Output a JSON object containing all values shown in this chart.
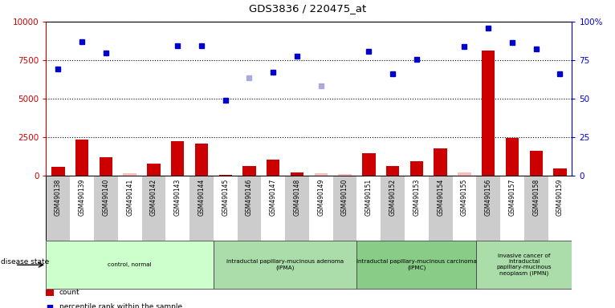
{
  "title": "GDS3836 / 220475_at",
  "samples": [
    "GSM490138",
    "GSM490139",
    "GSM490140",
    "GSM490141",
    "GSM490142",
    "GSM490143",
    "GSM490144",
    "GSM490145",
    "GSM490146",
    "GSM490147",
    "GSM490148",
    "GSM490149",
    "GSM490150",
    "GSM490151",
    "GSM490152",
    "GSM490153",
    "GSM490154",
    "GSM490155",
    "GSM490156",
    "GSM490157",
    "GSM490158",
    "GSM490159"
  ],
  "count": [
    550,
    2350,
    1200,
    150,
    750,
    2250,
    2100,
    50,
    600,
    1050,
    200,
    150,
    100,
    1450,
    600,
    950,
    1750,
    200,
    8100,
    2450,
    1600,
    450
  ],
  "count_is_absent": [
    false,
    false,
    false,
    true,
    false,
    false,
    false,
    false,
    false,
    false,
    false,
    true,
    true,
    false,
    false,
    false,
    false,
    true,
    false,
    false,
    false,
    false
  ],
  "percentile_rank": [
    6900,
    8700,
    7950,
    null,
    null,
    8450,
    8450,
    4900,
    null,
    6700,
    7750,
    null,
    null,
    8050,
    6600,
    7550,
    null,
    8400,
    9600,
    8650,
    8200,
    6600
  ],
  "rank_absent": [
    null,
    null,
    null,
    null,
    null,
    null,
    null,
    null,
    6350,
    null,
    null,
    5850,
    null,
    null,
    null,
    null,
    null,
    null,
    null,
    null,
    null,
    null
  ],
  "disease_groups": [
    {
      "label": "control, normal",
      "start": 0,
      "end": 7,
      "color": "#ccffcc"
    },
    {
      "label": "intraductal papillary-mucinous adenoma\n(IPMA)",
      "start": 7,
      "end": 13,
      "color": "#aaddaa"
    },
    {
      "label": "intraductal papillary-mucinous carcinoma\n(IPMC)",
      "start": 13,
      "end": 18,
      "color": "#88cc88"
    },
    {
      "label": "invasive cancer of\nintraductal\npapillary-mucinous\nneoplasm (IPMN)",
      "start": 18,
      "end": 22,
      "color": "#aaddaa"
    }
  ],
  "ylim_left": [
    0,
    10000
  ],
  "ylim_right": [
    0,
    100
  ],
  "yticks_left": [
    0,
    2500,
    5000,
    7500,
    10000
  ],
  "yticks_right": [
    0,
    25,
    50,
    75,
    100
  ],
  "bar_color": "#cc0000",
  "bar_absent_color": "#ffbbbb",
  "dot_color": "#0000cc",
  "dot_absent_color": "#aaaadd",
  "col_gray": "#cccccc",
  "col_white": "#ffffff"
}
